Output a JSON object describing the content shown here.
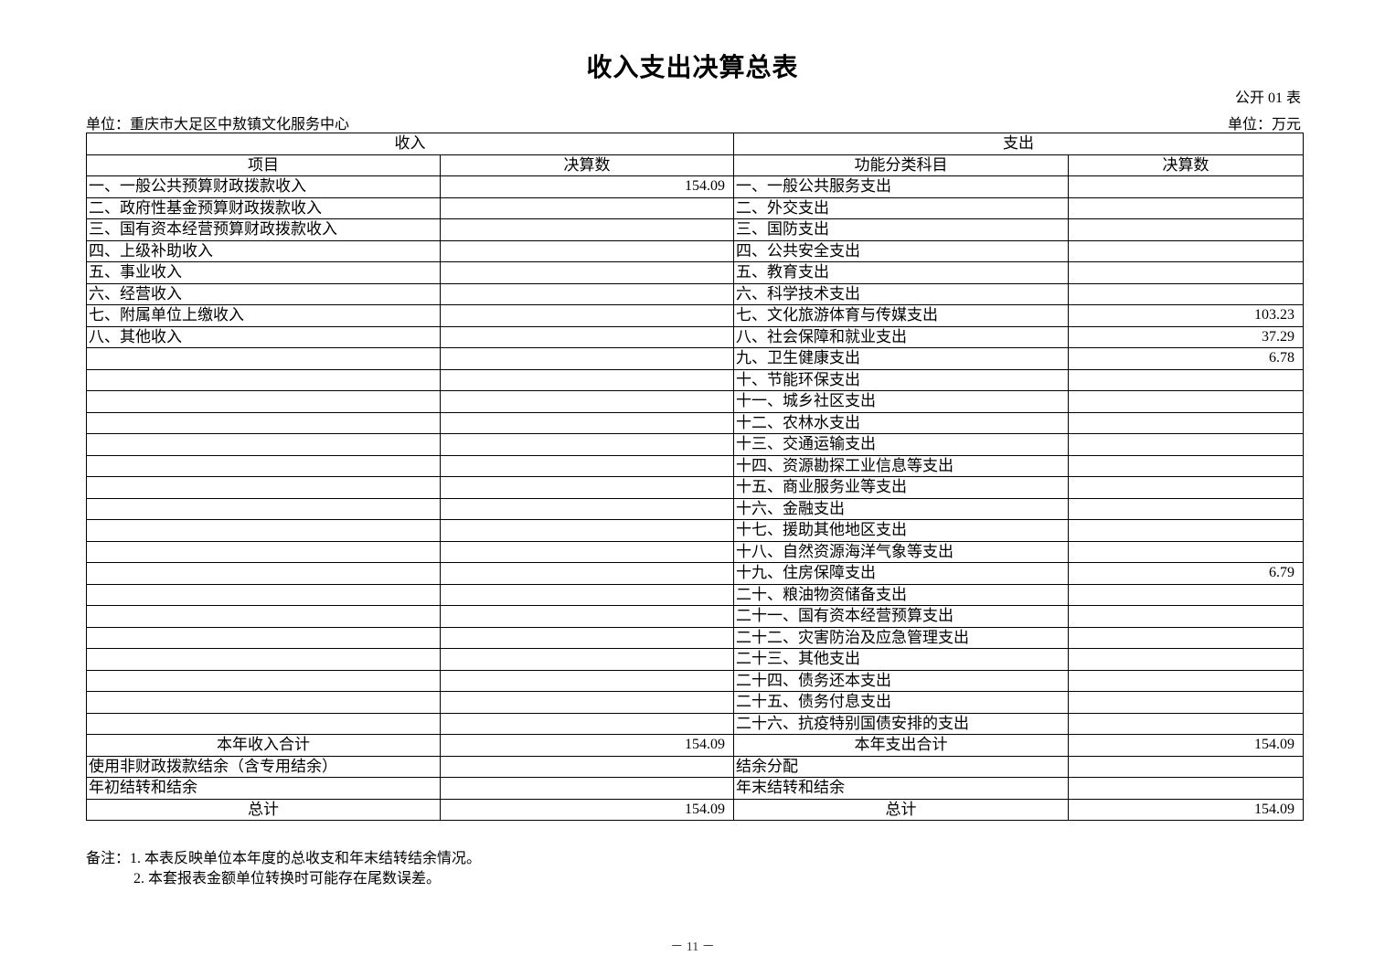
{
  "title": "收入支出决算总表",
  "form_no": "公开 01 表",
  "unit_org": "单位：重庆市大足区中敖镇文化服务中心",
  "unit_currency": "单位：万元",
  "headers": {
    "income": "收入",
    "expense": "支出",
    "item": "项目",
    "amount": "决算数",
    "func_item": "功能分类科目",
    "func_amount": "决算数"
  },
  "income_rows": [
    {
      "label": "一、一般公共预算财政拨款收入",
      "value": "154.09"
    },
    {
      "label": "二、政府性基金预算财政拨款收入",
      "value": ""
    },
    {
      "label": "三、国有资本经营预算财政拨款收入",
      "value": ""
    },
    {
      "label": "四、上级补助收入",
      "value": ""
    },
    {
      "label": "五、事业收入",
      "value": ""
    },
    {
      "label": "六、经营收入",
      "value": ""
    },
    {
      "label": "七、附属单位上缴收入",
      "value": ""
    },
    {
      "label": "八、其他收入",
      "value": ""
    }
  ],
  "expense_rows": [
    {
      "label": "一、一般公共服务支出",
      "value": ""
    },
    {
      "label": "二、外交支出",
      "value": ""
    },
    {
      "label": "三、国防支出",
      "value": ""
    },
    {
      "label": "四、公共安全支出",
      "value": ""
    },
    {
      "label": "五、教育支出",
      "value": ""
    },
    {
      "label": "六、科学技术支出",
      "value": ""
    },
    {
      "label": "七、文化旅游体育与传媒支出",
      "value": "103.23"
    },
    {
      "label": "八、社会保障和就业支出",
      "value": "37.29"
    },
    {
      "label": "九、卫生健康支出",
      "value": "6.78"
    },
    {
      "label": "十、节能环保支出",
      "value": ""
    },
    {
      "label": "十一、城乡社区支出",
      "value": ""
    },
    {
      "label": "十二、农林水支出",
      "value": ""
    },
    {
      "label": "十三、交通运输支出",
      "value": ""
    },
    {
      "label": "十四、资源勘探工业信息等支出",
      "value": ""
    },
    {
      "label": "十五、商业服务业等支出",
      "value": ""
    },
    {
      "label": "十六、金融支出",
      "value": ""
    },
    {
      "label": "十七、援助其他地区支出",
      "value": ""
    },
    {
      "label": "十八、自然资源海洋气象等支出",
      "value": ""
    },
    {
      "label": "十九、住房保障支出",
      "value": "6.79"
    },
    {
      "label": "二十、粮油物资储备支出",
      "value": ""
    },
    {
      "label": "二十一、国有资本经营预算支出",
      "value": ""
    },
    {
      "label": "二十二、灾害防治及应急管理支出",
      "value": ""
    },
    {
      "label": "二十三、其他支出",
      "value": ""
    },
    {
      "label": "二十四、债务还本支出",
      "value": ""
    },
    {
      "label": "二十五、债务付息支出",
      "value": ""
    },
    {
      "label": "二十六、抗疫特别国债安排的支出",
      "value": ""
    }
  ],
  "summary_rows": [
    {
      "in_label": "本年收入合计",
      "in_value": "154.09",
      "out_label": "本年支出合计",
      "out_value": "154.09",
      "center": true
    },
    {
      "in_label": "使用非财政拨款结余（含专用结余）",
      "in_value": "",
      "out_label": "结余分配",
      "out_value": "",
      "center": false
    },
    {
      "in_label": "年初结转和结余",
      "in_value": "",
      "out_label": "年末结转和结余",
      "out_value": "",
      "center": false
    },
    {
      "in_label": "总计",
      "in_value": "154.09",
      "out_label": "总计",
      "out_value": "154.09",
      "center": true
    }
  ],
  "notes": [
    "备注：1. 本表反映单位本年度的总收支和年末结转结余情况。",
    "2. 本套报表金额单位转换时可能存在尾数误差。"
  ],
  "page_number": "－ 11 －"
}
